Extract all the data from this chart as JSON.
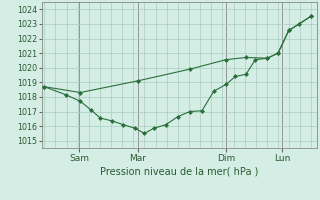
{
  "background_color": "#d5eee5",
  "grid_color": "#a8cfc0",
  "line_color": "#2a6e3a",
  "marker_color": "#2a6e3a",
  "x_tick_labels": [
    "Sam",
    "Mar",
    "Dim",
    "Lun"
  ],
  "x_tick_positions": [
    0.13,
    0.35,
    0.68,
    0.89
  ],
  "xlabel": "Pression niveau de la mer( hPa )",
  "ylim": [
    1014.5,
    1024.5
  ],
  "yticks": [
    1015,
    1016,
    1017,
    1018,
    1019,
    1020,
    1021,
    1022,
    1023,
    1024
  ],
  "line1_x": [
    0.0,
    0.08,
    0.135,
    0.175,
    0.21,
    0.255,
    0.295,
    0.34,
    0.375,
    0.41,
    0.455,
    0.5,
    0.545,
    0.59,
    0.635,
    0.68,
    0.715,
    0.755,
    0.79,
    0.835,
    0.875,
    0.915,
    0.955,
    1.0
  ],
  "line1_y": [
    1018.7,
    1018.15,
    1017.7,
    1017.1,
    1016.55,
    1016.35,
    1016.1,
    1015.85,
    1015.5,
    1015.85,
    1016.1,
    1016.65,
    1017.0,
    1017.05,
    1018.4,
    1018.85,
    1019.4,
    1019.55,
    1020.55,
    1020.65,
    1021.0,
    1022.55,
    1023.0,
    1023.55
  ],
  "line2_x": [
    0.0,
    0.135,
    0.35,
    0.545,
    0.68,
    0.755,
    0.835,
    0.875,
    0.915,
    1.0
  ],
  "line2_y": [
    1018.7,
    1018.3,
    1019.1,
    1019.9,
    1020.55,
    1020.7,
    1020.65,
    1021.0,
    1022.55,
    1023.55
  ],
  "xlim": [
    -0.01,
    1.02
  ]
}
